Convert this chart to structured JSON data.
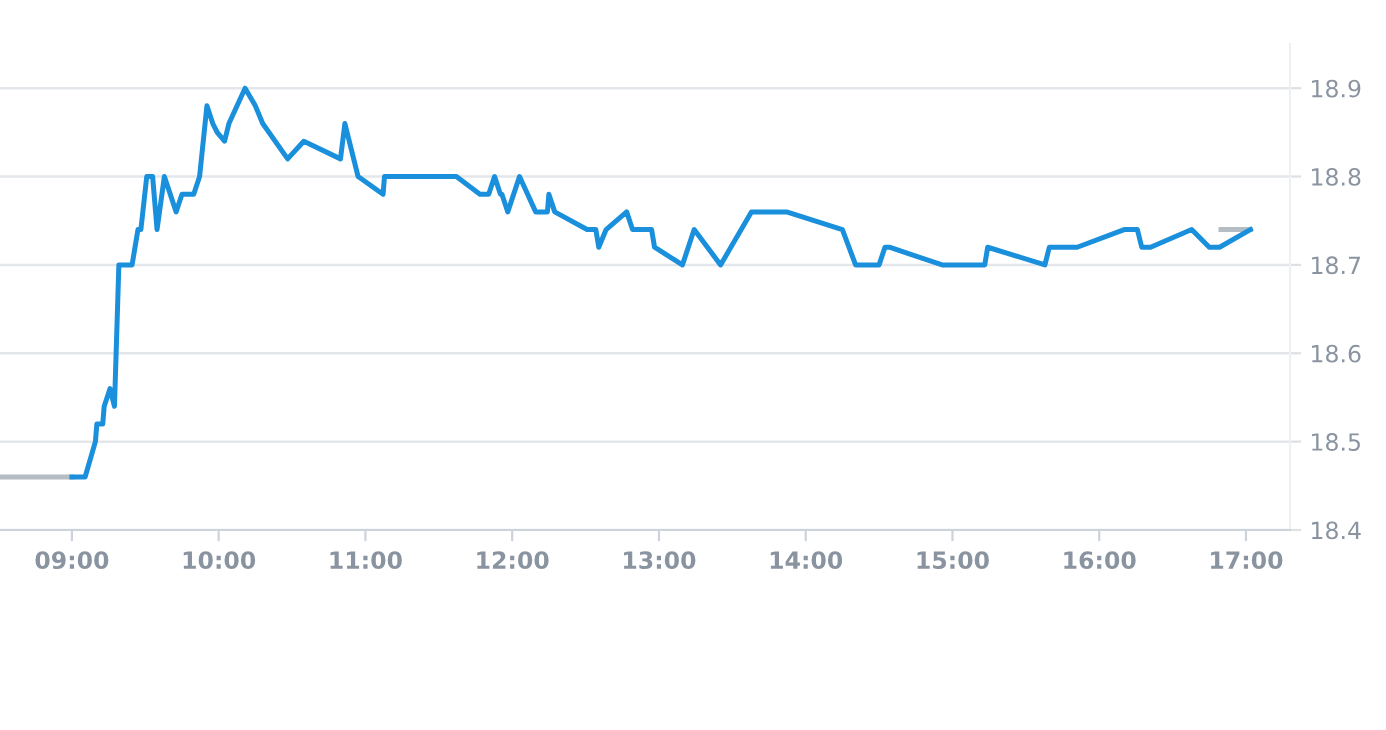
{
  "chart_data": {
    "type": "line",
    "xlim": [
      8.51,
      17.3
    ],
    "xticks": [
      {
        "value": 9,
        "label": "09:00"
      },
      {
        "value": 10,
        "label": "10:00"
      },
      {
        "value": 11,
        "label": "11:00"
      },
      {
        "value": 12,
        "label": "12:00"
      },
      {
        "value": 13,
        "label": "13:00"
      },
      {
        "value": 14,
        "label": "14:00"
      },
      {
        "value": 15,
        "label": "15:00"
      },
      {
        "value": 16,
        "label": "16:00"
      },
      {
        "value": 17,
        "label": "17:00"
      }
    ],
    "ylim": [
      18.4,
      18.95
    ],
    "yticks": [
      18.4,
      18.5,
      18.6,
      18.7,
      18.8,
      18.9
    ],
    "grid": "y",
    "marker": "none",
    "series": [
      {
        "color": "#b4bcc4",
        "x": [
          8.51,
          9.0
        ],
        "values": [
          18.46,
          18.46
        ]
      },
      {
        "color": "#b4bcc4",
        "x": [
          16.83,
          17.03
        ],
        "values": [
          18.74,
          18.74
        ]
      },
      {
        "color": "#1a90dc",
        "x": [
          9.0,
          9.09,
          9.16,
          9.17,
          9.21,
          9.22,
          9.26,
          9.29,
          9.32,
          9.41,
          9.45,
          9.47,
          9.51,
          9.55,
          9.58,
          9.63,
          9.71,
          9.75,
          9.83,
          9.87,
          9.92,
          9.96,
          9.99,
          10.04,
          10.07,
          10.18,
          10.25,
          10.3,
          10.47,
          10.58,
          10.83,
          10.86,
          10.95,
          11.12,
          11.13,
          11.62,
          11.78,
          11.84,
          11.88,
          11.92,
          11.93,
          11.97,
          12.05,
          12.16,
          12.24,
          12.25,
          12.29,
          12.51,
          12.57,
          12.59,
          12.64,
          12.78,
          12.82,
          12.95,
          12.97,
          13.16,
          13.24,
          13.42,
          13.63,
          13.87,
          14.25,
          14.34,
          14.5,
          14.54,
          14.57,
          14.93,
          15.22,
          15.24,
          15.63,
          15.66,
          15.85,
          16.17,
          16.26,
          16.29,
          16.35,
          16.63,
          16.75,
          16.82,
          17.03
        ],
        "values": [
          18.46,
          18.46,
          18.5,
          18.52,
          18.52,
          18.54,
          18.56,
          18.54,
          18.7,
          18.7,
          18.74,
          18.74,
          18.8,
          18.8,
          18.74,
          18.8,
          18.76,
          18.78,
          18.78,
          18.8,
          18.88,
          18.86,
          18.85,
          18.84,
          18.86,
          18.9,
          18.88,
          18.86,
          18.82,
          18.84,
          18.82,
          18.86,
          18.8,
          18.78,
          18.8,
          18.8,
          18.78,
          18.78,
          18.8,
          18.78,
          18.78,
          18.76,
          18.8,
          18.76,
          18.76,
          18.78,
          18.76,
          18.74,
          18.74,
          18.72,
          18.74,
          18.76,
          18.74,
          18.74,
          18.72,
          18.7,
          18.74,
          18.7,
          18.76,
          18.76,
          18.74,
          18.7,
          18.7,
          18.72,
          18.72,
          18.7,
          18.7,
          18.72,
          18.7,
          18.72,
          18.72,
          18.74,
          18.74,
          18.72,
          18.72,
          18.74,
          18.72,
          18.72,
          18.74
        ]
      }
    ]
  }
}
